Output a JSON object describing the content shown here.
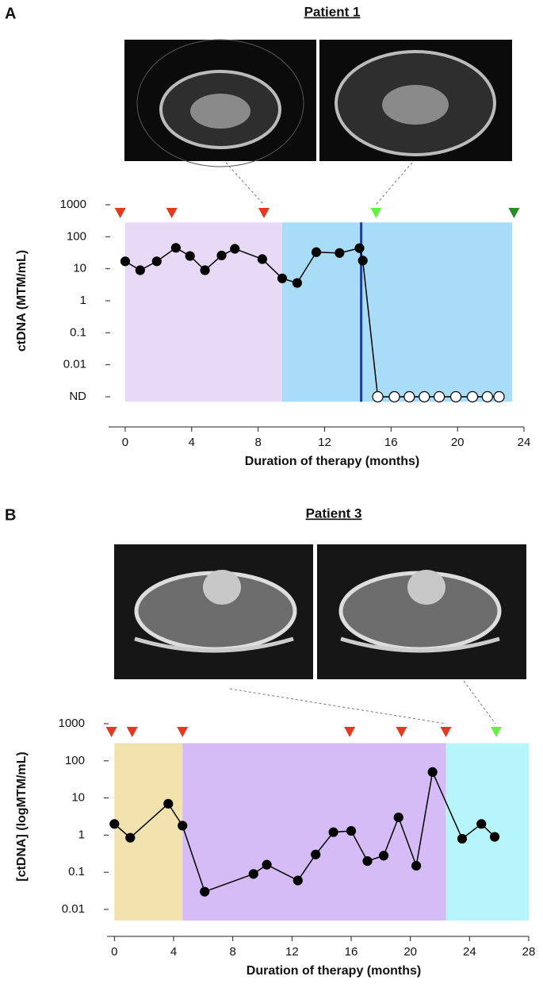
{
  "chart_data": [
    {
      "type": "line",
      "panel": "A",
      "title": "Patient 1",
      "xlabel": "Duration of therapy (months)",
      "ylabel": "ctDNA (MTM/mL)",
      "log_y": true,
      "color": "#000000",
      "xlim": [
        -1,
        24
      ],
      "xticks": [
        0,
        4,
        8,
        12,
        16,
        20,
        24
      ],
      "ylim": [
        0.001,
        1000
      ],
      "yticks": [
        {
          "value": 0.001,
          "label": "ND"
        },
        0.01,
        0.1,
        1,
        10,
        100,
        1000
      ],
      "x": [
        0,
        0.9,
        1.9,
        3.05,
        3.9,
        4.8,
        5.8,
        6.6,
        8.25,
        9.45,
        10.35,
        11.5,
        12.9,
        14.1,
        14.3,
        15.2,
        16.2,
        17.1,
        18.0,
        18.9,
        19.9,
        20.9,
        21.8,
        22.5
      ],
      "values": [
        17,
        9,
        17,
        45,
        25,
        9,
        26,
        42,
        20,
        5,
        3.6,
        33,
        31,
        44,
        18,
        0.001,
        0.001,
        0.001,
        0.001,
        0.001,
        0.001,
        0.001,
        0.001,
        0.001
      ],
      "regions": [
        {
          "x": [
            0,
            9.45
          ],
          "ylim": [
            0.0007,
            280
          ],
          "color": "#e8d9f7"
        },
        {
          "x": [
            9.45,
            23.3
          ],
          "ylim": [
            0.0007,
            280
          ],
          "color": "#a9dcf7"
        }
      ],
      "vlines": [
        {
          "x": 14.2,
          "color": "#1c3f9e"
        }
      ],
      "markers": [
        {
          "x": -0.3,
          "color": "#e23a1f"
        },
        {
          "x": 2.8,
          "color": "#e23a1f"
        },
        {
          "x": 8.35,
          "color": "#e23a1f"
        },
        {
          "x": 15.1,
          "color": "#66ee44"
        },
        {
          "x": 23.4,
          "color": "#2a8a2a"
        }
      ]
    },
    {
      "type": "line",
      "panel": "B",
      "title": "Patient 3",
      "xlabel": "Duration of therapy (months)",
      "ylabel": "[ctDNA] (logMTM/mL)",
      "log_y": true,
      "color": "#000000",
      "xlim": [
        -0.5,
        28
      ],
      "xticks": [
        0,
        4,
        8,
        12,
        16,
        20,
        24,
        28
      ],
      "ylim": [
        0.01,
        1000
      ],
      "yticks": [
        0.01,
        0.1,
        1,
        10,
        100,
        1000
      ],
      "x": [
        0,
        1.07,
        3.64,
        4.6,
        6.1,
        9.4,
        10.3,
        12.4,
        13.6,
        14.8,
        16.0,
        17.1,
        18.2,
        19.2,
        20.4,
        21.5,
        23.5,
        24.8,
        25.7
      ],
      "values": [
        2,
        0.85,
        7,
        1.8,
        0.03,
        0.09,
        0.16,
        0.06,
        0.3,
        1.2,
        1.3,
        0.2,
        0.28,
        3,
        0.15,
        50,
        0.8,
        2,
        0.9
      ],
      "regions": [
        {
          "x": [
            0,
            4.6
          ],
          "ylim": [
            0.005,
            300
          ],
          "color": "#f2e3ae"
        },
        {
          "x": [
            4.6,
            22.4
          ],
          "ylim": [
            0.005,
            300
          ],
          "color": "#d6bcf6"
        },
        {
          "x": [
            22.4,
            28
          ],
          "ylim": [
            0.005,
            300
          ],
          "color": "#b6f5fa"
        }
      ],
      "vlines": [],
      "markers": [
        {
          "x": -0.2,
          "color": "#e23a1f"
        },
        {
          "x": 1.2,
          "color": "#e23a1f"
        },
        {
          "x": 4.6,
          "color": "#e23a1f"
        },
        {
          "x": 15.9,
          "color": "#e23a1f"
        },
        {
          "x": 19.4,
          "color": "#e23a1f"
        },
        {
          "x": 22.4,
          "color": "#e23a1f"
        },
        {
          "x": 25.8,
          "color": "#66ee44"
        }
      ]
    }
  ]
}
